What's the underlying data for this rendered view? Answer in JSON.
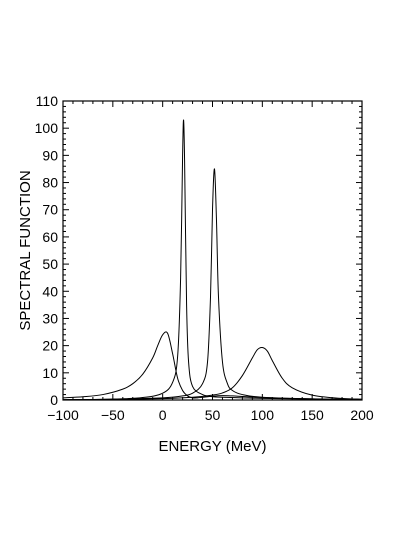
{
  "chart_data": {
    "type": "line",
    "title": "",
    "xlabel": "ENERGY  (MeV)",
    "ylabel": "SPECTRAL  FUNCTION",
    "xlim": [
      -100,
      200
    ],
    "ylim": [
      0,
      110
    ],
    "x_ticks": [
      -100,
      -50,
      0,
      50,
      100,
      150,
      200
    ],
    "x_tick_labels": [
      "−100",
      "−50",
      "0",
      "50",
      "100",
      "150",
      "200"
    ],
    "y_ticks": [
      0,
      10,
      20,
      30,
      40,
      50,
      60,
      70,
      80,
      90,
      100,
      110
    ],
    "y_tick_labels": [
      "0",
      "10",
      "20",
      "30",
      "40",
      "50",
      "60",
      "70",
      "80",
      "90",
      "100",
      "110"
    ],
    "grid": false,
    "legend": "none",
    "line_color": "#000000",
    "series": [
      {
        "x": [
          -100,
          -80,
          -60,
          -40,
          -30,
          -20,
          -10,
          -5,
          0,
          5,
          10,
          15,
          20,
          25,
          30,
          35,
          40,
          50,
          60,
          70,
          80,
          100,
          120,
          150,
          200
        ],
        "y": [
          0.8,
          1.2,
          2.0,
          4.0,
          6.0,
          9.5,
          15.5,
          20.0,
          24.0,
          24.5,
          17.0,
          8.0,
          3.5,
          1.5,
          0.8,
          0.8,
          1.0,
          1.4,
          1.6,
          1.5,
          1.3,
          0.9,
          0.6,
          0.4,
          0.2
        ]
      },
      {
        "x": [
          -100,
          -50,
          -20,
          0,
          10,
          15,
          18,
          20,
          21,
          22,
          24,
          26,
          30,
          40,
          50,
          60,
          80,
          100,
          150,
          200
        ],
        "y": [
          0.1,
          0.3,
          0.9,
          2.5,
          6.5,
          16.0,
          45.0,
          90.0,
          103.0,
          88.0,
          35.0,
          14.0,
          5.0,
          2.0,
          1.2,
          1.0,
          0.8,
          0.6,
          0.3,
          0.1
        ]
      },
      {
        "x": [
          -100,
          -50,
          0,
          20,
          30,
          40,
          45,
          48,
          50,
          52,
          54,
          56,
          60,
          65,
          70,
          80,
          100,
          150,
          200
        ],
        "y": [
          0.1,
          0.3,
          0.8,
          1.5,
          2.5,
          6.0,
          14.0,
          38.0,
          70.0,
          85.0,
          66.0,
          38.0,
          14.0,
          6.0,
          3.5,
          2.0,
          1.0,
          0.4,
          0.2
        ]
      },
      {
        "x": [
          -100,
          -50,
          0,
          30,
          50,
          60,
          70,
          80,
          90,
          95,
          100,
          105,
          110,
          120,
          130,
          150,
          175,
          200
        ],
        "y": [
          0.1,
          0.2,
          0.5,
          1.0,
          1.8,
          2.6,
          4.5,
          9.0,
          15.5,
          18.5,
          19.3,
          18.0,
          14.5,
          8.0,
          4.5,
          1.8,
          0.7,
          0.3
        ]
      }
    ]
  }
}
